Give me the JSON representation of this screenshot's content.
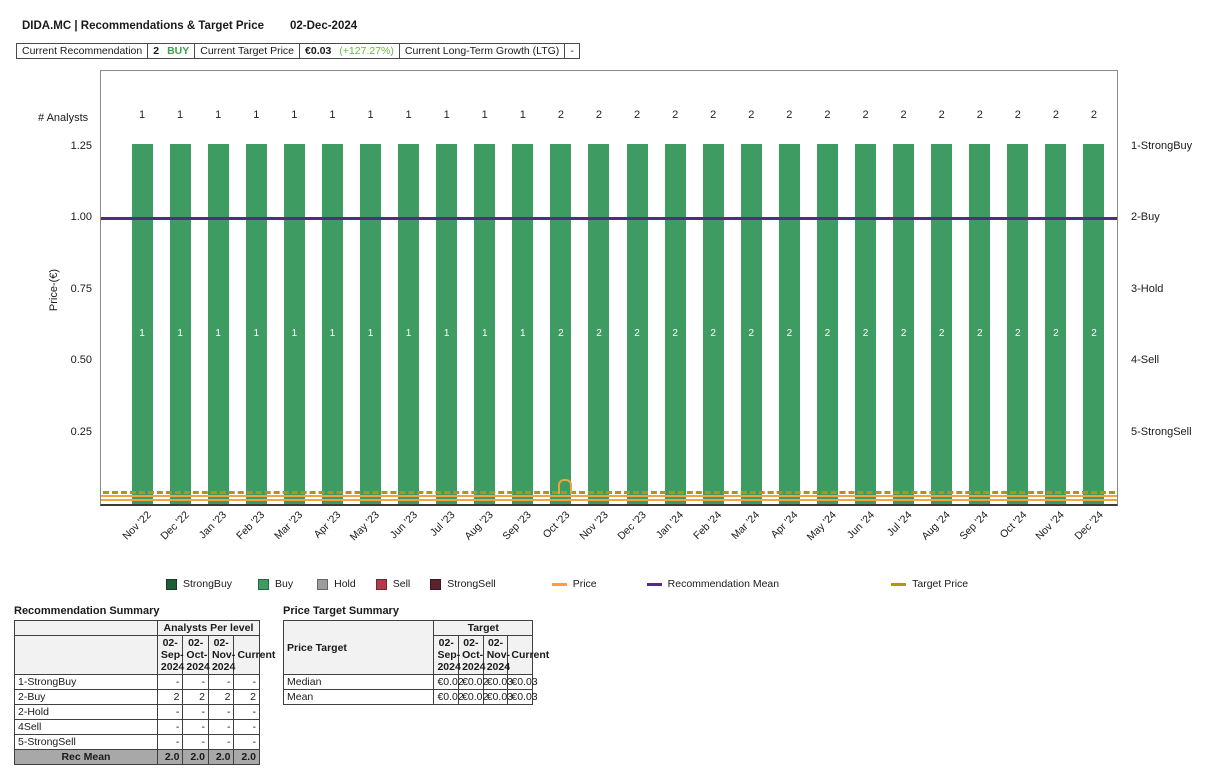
{
  "header": {
    "title": "DIDA.MC | Recommendations & Target Price",
    "date": "02-Dec-2024"
  },
  "info_bar": {
    "recommendation_label": "Current Recommendation",
    "recommendation_value": "2",
    "recommendation_text": "BUY",
    "target_price_label": "Current Target Price",
    "target_price_value": "€0.03",
    "target_price_change": "(+127.27%)",
    "ltg_label": "Current Long-Term Growth (LTG)",
    "ltg_value": "-"
  },
  "chart": {
    "analysts_label": "# Analysts",
    "ylabel": "Price-(€)"
  },
  "chart_data": {
    "type": "bar",
    "title": "DIDA.MC | Recommendations & Target Price",
    "categories": [
      "Nov '22",
      "Dec '22",
      "Jan '23",
      "Feb '23",
      "Mar '23",
      "Apr '23",
      "May '23",
      "Jun '23",
      "Jul '23",
      "Aug '23",
      "Sep '23",
      "Oct '23",
      "Nov '23",
      "Dec '23",
      "Jan '24",
      "Feb '24",
      "Mar '24",
      "Apr '24",
      "May '24",
      "Jun '24",
      "Jul '24",
      "Aug '24",
      "Sep '24",
      "Oct '24",
      "Nov '24",
      "Dec '24"
    ],
    "series": [
      {
        "name": "Buy",
        "analyst_counts": [
          1,
          1,
          1,
          1,
          1,
          1,
          1,
          1,
          1,
          1,
          1,
          2,
          2,
          2,
          2,
          2,
          2,
          2,
          2,
          2,
          2,
          2,
          2,
          2,
          2,
          2
        ]
      }
    ],
    "bar_color_category": "Buy",
    "bar_display_top_price_axis": 1.26,
    "recommendation_mean": 2.0,
    "recommendation_mean_price_axis": 1.0,
    "price_line_eur": 0.01,
    "target_price_line_eur": 0.03,
    "target_price_spike": {
      "month": "Oct '23",
      "approx_value_eur": 0.09
    },
    "ylabel": "Price-(€)",
    "yticks": [
      "1.25",
      "1.00",
      "0.75",
      "0.50",
      "0.25"
    ],
    "ylim": [
      0,
      1.51
    ],
    "right_axis_labels": [
      "1-StrongBuy",
      "2-Buy",
      "3-Hold",
      "4-Sell",
      "5-StrongSell"
    ],
    "xlabel_rotation_deg": -45,
    "grid": false,
    "legend_position": "bottom"
  },
  "legend": {
    "items": [
      {
        "label": "StrongBuy",
        "swatch": "square",
        "color": "#1F5C38"
      },
      {
        "label": "Buy",
        "swatch": "square",
        "color": "#3E9B62"
      },
      {
        "label": "Hold",
        "swatch": "square",
        "color": "#9D9D9D"
      },
      {
        "label": "Sell",
        "swatch": "square",
        "color": "#B23B4B"
      },
      {
        "label": "StrongSell",
        "swatch": "square",
        "color": "#5E212E"
      },
      {
        "label": "Price",
        "swatch": "line",
        "color": "#F2A43C"
      },
      {
        "label": "Recommendation Mean",
        "swatch": "line",
        "color": "#4F2D82"
      },
      {
        "label": "Target Price",
        "swatch": "line",
        "color": "#B5950E"
      }
    ]
  },
  "tables": {
    "recommendation_summary": {
      "title": "Recommendation Summary",
      "group_header": "Analysts Per level",
      "columns": [
        "02-Sep-2024",
        "02-Oct-2024",
        "02-Nov-2024",
        "Current"
      ],
      "rows": [
        {
          "label": "1-StrongBuy",
          "values": [
            "-",
            "-",
            "-",
            "-"
          ]
        },
        {
          "label": "2-Buy",
          "values": [
            "2",
            "2",
            "2",
            "2"
          ]
        },
        {
          "label": "2-Hold",
          "values": [
            "-",
            "-",
            "-",
            "-"
          ]
        },
        {
          "label": "4Sell",
          "values": [
            "-",
            "-",
            "-",
            "-"
          ]
        },
        {
          "label": "5-StrongSell",
          "values": [
            "-",
            "-",
            "-",
            "-"
          ]
        }
      ],
      "footer": {
        "label": "Rec Mean",
        "values": [
          "2.0",
          "2.0",
          "2.0",
          "2.0"
        ]
      }
    },
    "price_target_summary": {
      "title": "Price Target Summary",
      "row_header": "Price Target",
      "group_header": "Target",
      "columns": [
        "02-Sep-2024",
        "02-Oct-2024",
        "02-Nov-2024",
        "Current"
      ],
      "rows": [
        {
          "label": "Median",
          "values": [
            "€0.02",
            "€0.02",
            "€0.03",
            "€0.03"
          ]
        },
        {
          "label": "Mean",
          "values": [
            "€0.02",
            "€0.02",
            "€0.03",
            "€0.03"
          ]
        }
      ]
    }
  }
}
